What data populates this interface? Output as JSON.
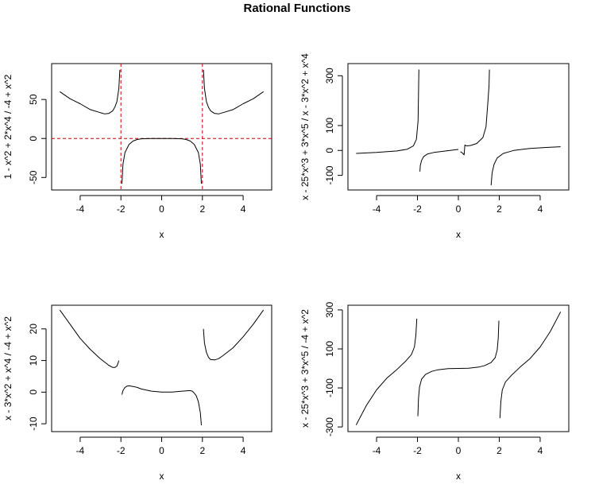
{
  "figure": {
    "title": "Rational Functions"
  },
  "chart_data": [
    {
      "type": "line",
      "title": "",
      "xlabel": "x",
      "ylabel": "1 - x^2 + 2*x^4 / -4 + x^2",
      "xlim": [
        -5,
        5
      ],
      "ylim": [
        -60,
        90
      ],
      "xticks": [
        -4,
        -2,
        0,
        2,
        4
      ],
      "yticks": [
        -50,
        0,
        50
      ],
      "grid": false,
      "reference_lines": {
        "color": "#cc0000",
        "style": "dashed",
        "vertical": [
          -2,
          2
        ],
        "horizontal": [
          0
        ]
      },
      "series": [
        {
          "x": [
            -5,
            -4.5,
            -4,
            -3.5,
            -3,
            -2.8,
            -2.6,
            -2.4,
            -2.3,
            -2.2,
            -2.1,
            -2.05
          ],
          "y": [
            60,
            51,
            44.5,
            37,
            33,
            31.5,
            32,
            35.5,
            40,
            47,
            64,
            88
          ]
        },
        {
          "x": [
            -1.95,
            -1.9,
            -1.8,
            -1.6,
            -1.4,
            -1.2,
            -1,
            -0.5,
            0,
            0.5,
            1,
            1.2,
            1.4,
            1.6,
            1.8,
            1.9,
            1.95
          ],
          "y": [
            -58,
            -33,
            -18,
            -7.5,
            -3.2,
            -1.3,
            -0.4,
            0,
            0,
            0,
            -0.4,
            -1.3,
            -3.2,
            -7.5,
            -18,
            -33,
            -58
          ]
        },
        {
          "x": [
            2.05,
            2.1,
            2.2,
            2.3,
            2.4,
            2.6,
            2.8,
            3,
            3.5,
            4,
            4.5,
            5
          ],
          "y": [
            88,
            64,
            47,
            40,
            35.5,
            32,
            31.5,
            33,
            37,
            44.5,
            51,
            60
          ]
        }
      ]
    },
    {
      "type": "line",
      "title": "",
      "xlabel": "x",
      "ylabel": "x - 25*x^3 + 3*x^5 / x - 3*x^2 + x^4",
      "xlim": [
        -5,
        5
      ],
      "ylim": [
        -140,
        330
      ],
      "xticks": [
        -4,
        -2,
        0,
        2,
        4
      ],
      "yticks": [
        -100,
        0,
        100,
        300
      ],
      "grid": false,
      "series": [
        {
          "x": [
            -5,
            -4,
            -3,
            -2.5,
            -2.2,
            -2.05,
            -1.97,
            -1.93
          ],
          "y": [
            -12,
            -8,
            -2,
            5,
            18,
            45,
            120,
            325
          ]
        },
        {
          "x": [
            -1.88,
            -1.86,
            -1.8,
            -1.7,
            -1.5,
            -1.2,
            -0.8,
            -0.4,
            -0.1,
            0
          ],
          "y": [
            -85,
            -60,
            -40,
            -25,
            -14,
            -8,
            -4,
            0,
            3,
            4
          ]
        },
        {
          "x": [
            0.1,
            0.2,
            0.28,
            0.32,
            0.4,
            0.6,
            0.9,
            1.2,
            1.35,
            1.45,
            1.5,
            1.52
          ],
          "y": [
            -5,
            -10,
            -18,
            22,
            18,
            20,
            28,
            52,
            95,
            200,
            260,
            325
          ]
        },
        {
          "x": [
            1.6,
            1.65,
            1.75,
            1.9,
            2.2,
            2.7,
            3.5,
            4.3,
            5
          ],
          "y": [
            -140,
            -90,
            -55,
            -30,
            -12,
            0,
            8,
            12,
            15
          ]
        }
      ]
    },
    {
      "type": "line",
      "title": "",
      "xlabel": "x",
      "ylabel": "x - 3*x^2 + x^4 / -4 + x^2",
      "xlim": [
        -5,
        5
      ],
      "ylim": [
        -11,
        26
      ],
      "xticks": [
        -4,
        -2,
        0,
        2,
        4
      ],
      "yticks": [
        -10,
        0,
        10,
        20
      ],
      "grid": false,
      "series": [
        {
          "x": [
            -5,
            -4.5,
            -4,
            -3.5,
            -3,
            -2.8,
            -2.6,
            -2.4,
            -2.3,
            -2.2,
            -2.15,
            -2.1
          ],
          "y": [
            26,
            21.5,
            17,
            13.5,
            10.5,
            9.5,
            8.5,
            7.8,
            7.8,
            8.2,
            9,
            10
          ]
        },
        {
          "x": [
            -1.95,
            -1.9,
            -1.8,
            -1.7,
            -1.6,
            -1.4,
            -1.2,
            -1,
            -0.5,
            0,
            0.5,
            1,
            1.2,
            1.4,
            1.5,
            1.6,
            1.7,
            1.8,
            1.9,
            1.95
          ],
          "y": [
            -0.8,
            0.5,
            1.5,
            1.9,
            2,
            1.8,
            1.5,
            1,
            0.3,
            0,
            0,
            0.3,
            0.4,
            0.5,
            0.3,
            -0.3,
            -1.2,
            -3,
            -6.5,
            -10.5
          ]
        },
        {
          "x": [
            2.05,
            2.1,
            2.2,
            2.3,
            2.4,
            2.6,
            2.8,
            3,
            3.5,
            4,
            4.5,
            5
          ],
          "y": [
            20,
            15.5,
            12.5,
            11,
            10.3,
            10.2,
            10.6,
            11.5,
            14,
            17.5,
            21.5,
            26
          ]
        }
      ]
    },
    {
      "type": "line",
      "title": "",
      "xlabel": "x",
      "ylabel": "x - 25*x^3 + 3*x^5 / -4 + x^2",
      "xlim": [
        -5,
        5
      ],
      "ylim": [
        -300,
        300
      ],
      "xticks": [
        -4,
        -2,
        0,
        2,
        4
      ],
      "yticks": [
        -300,
        -100,
        100,
        300
      ],
      "grid": false,
      "series": [
        {
          "x": [
            -5,
            -4.5,
            -4,
            -3.5,
            -3,
            -2.6,
            -2.3,
            -2.15,
            -2.08,
            -2.03
          ],
          "y": [
            -290,
            -190,
            -110,
            -50,
            -5,
            35,
            70,
            110,
            170,
            255
          ]
        },
        {
          "x": [
            -1.98,
            -1.95,
            -1.9,
            -1.8,
            -1.6,
            -1.3,
            -1,
            -0.5,
            0,
            0.5,
            1,
            1.3,
            1.6,
            1.8,
            1.9,
            1.95,
            1.98
          ],
          "y": [
            -245,
            -155,
            -95,
            -55,
            -30,
            -15,
            -7,
            -1,
            0,
            1,
            7,
            15,
            30,
            55,
            95,
            155,
            245
          ]
        },
        {
          "x": [
            2.03,
            2.08,
            2.15,
            2.3,
            2.6,
            3,
            3.5,
            4,
            4.5,
            5
          ],
          "y": [
            -255,
            -170,
            -110,
            -70,
            -35,
            5,
            50,
            110,
            190,
            290
          ]
        }
      ]
    }
  ]
}
